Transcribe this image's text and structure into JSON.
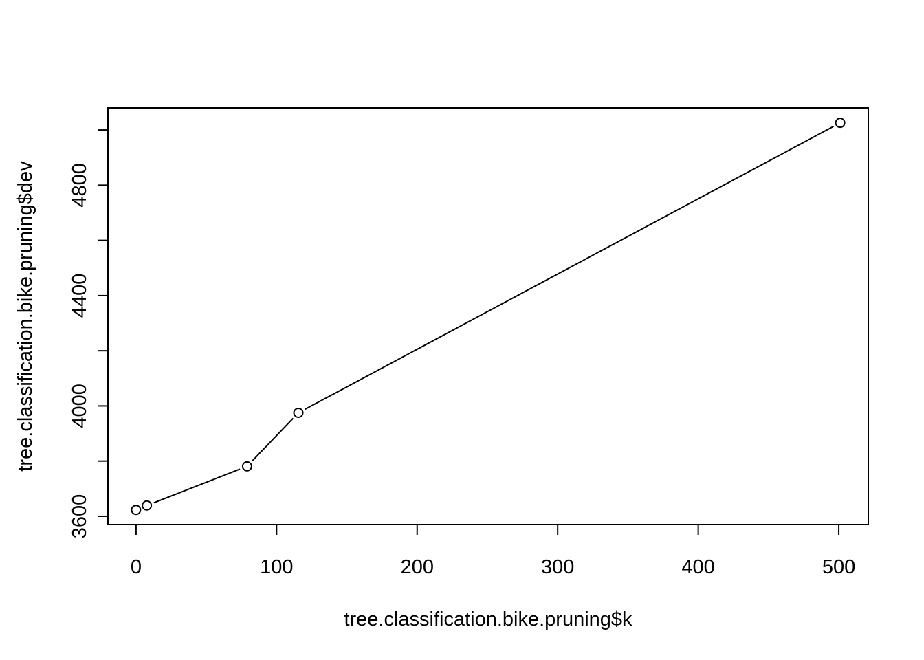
{
  "chart_data": {
    "type": "line",
    "markers": "open-circle",
    "title": "",
    "xlabel": "tree.classification.bike.pruning$k",
    "ylabel": "tree.classification.bike.pruning$dev",
    "xlim": [
      -20,
      521
    ],
    "ylim": [
      3570,
      5080
    ],
    "x_ticks": [
      0,
      100,
      200,
      300,
      400,
      500
    ],
    "x_tick_labels": [
      "0",
      "100",
      "200",
      "300",
      "400",
      "500"
    ],
    "y_ticks": [
      3600,
      3800,
      4000,
      4200,
      4400,
      4600,
      4800,
      5000
    ],
    "y_tick_labels": [
      "3600",
      "",
      "4000",
      "",
      "4400",
      "",
      "4800",
      ""
    ],
    "grid": false,
    "legend": "none",
    "series": [
      {
        "x": [
          0,
          7.7,
          79,
          115.5,
          501
        ],
        "y": [
          3623,
          3639,
          3781,
          3975,
          5026
        ]
      }
    ]
  }
}
